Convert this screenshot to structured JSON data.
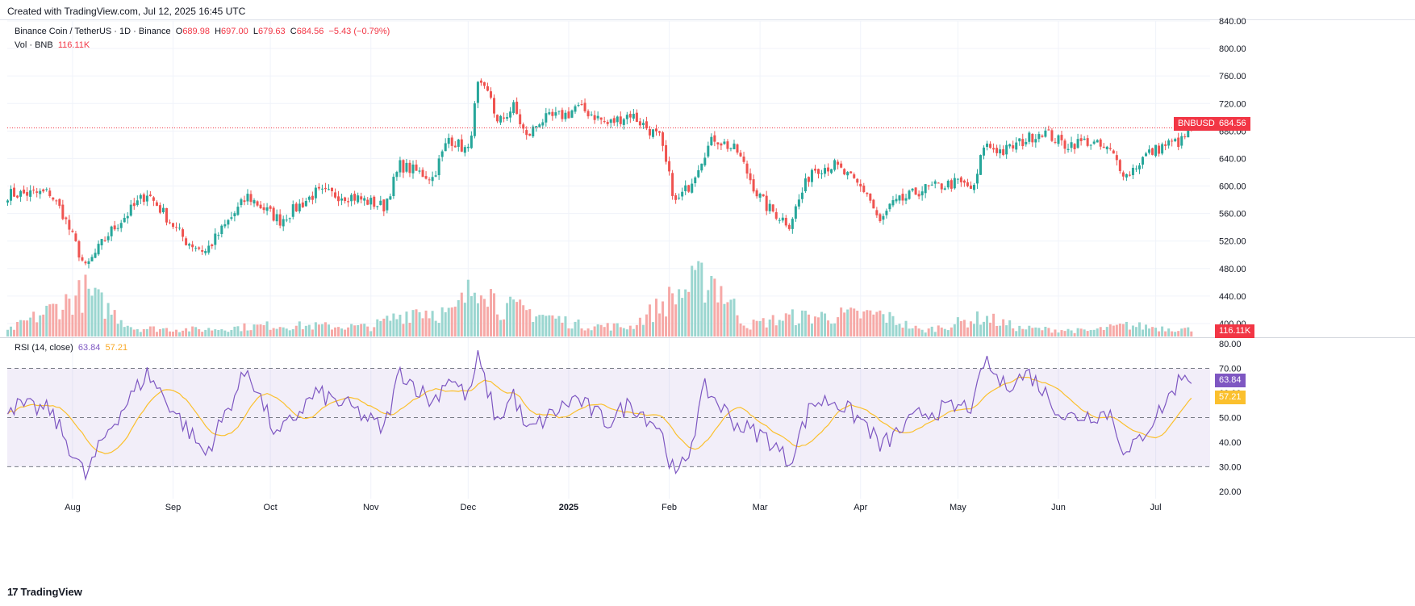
{
  "header": {
    "created": "Created with TradingView.com, Jul 12, 2025 16:45 UTC"
  },
  "legend": {
    "symbol": "Binance Coin / TetherUS · 1D · Binance",
    "o_label": "O",
    "o": "689.98",
    "h_label": "H",
    "h": "697.00",
    "l_label": "L",
    "l": "679.63",
    "c_label": "C",
    "c": "684.56",
    "change": "−5.43 (−0.79%)",
    "vol_label": "Vol · BNB",
    "vol": "116.11K",
    "rsi_label": "RSI (14, close)",
    "rsi": "63.84",
    "rsi_ma": "57.21"
  },
  "badges": {
    "symbol_tag": "BNBUSDT",
    "price_tag": "684.56",
    "vol_tag": "116.11K",
    "rsi_tag": "63.84",
    "rsi_ma_tag": "57.21"
  },
  "footer": {
    "brand": "TradingView",
    "brand_mark": "17"
  },
  "colors": {
    "up": "#26a69a",
    "down": "#ef5350",
    "rsi": "#7e57c2",
    "rsi_ma": "#fbc02d",
    "price_line": "#f23645"
  },
  "chart_data": {
    "type": "candlestick",
    "x_labels": [
      "Aug",
      "Sep",
      "Oct",
      "Nov",
      "Dec",
      "2025",
      "Feb",
      "Mar",
      "Apr",
      "May",
      "Jun",
      "Jul"
    ],
    "price_axis": {
      "ticks": [
        840,
        800,
        760,
        720,
        680,
        640,
        600,
        560,
        520,
        480,
        440,
        400
      ],
      "range": [
        380,
        840
      ]
    },
    "rsi_axis": {
      "ticks": [
        80,
        70,
        60,
        50,
        40,
        30,
        20
      ],
      "range": [
        17,
        82
      ],
      "bands": [
        70,
        50,
        30
      ]
    },
    "last_price": 684.56,
    "close_path_anchors": [
      [
        "2024-07-12",
        588
      ],
      [
        "2024-07-25",
        590
      ],
      [
        "2024-07-29",
        560
      ],
      [
        "2024-08-05",
        480
      ],
      [
        "2024-08-12",
        530
      ],
      [
        "2024-08-24",
        590
      ],
      [
        "2024-09-05",
        520
      ],
      [
        "2024-09-11",
        505
      ],
      [
        "2024-09-24",
        585
      ],
      [
        "2024-10-01",
        560
      ],
      [
        "2024-10-04",
        550
      ],
      [
        "2024-10-15",
        590
      ],
      [
        "2024-10-26",
        585
      ],
      [
        "2024-11-05",
        570
      ],
      [
        "2024-11-10",
        630
      ],
      [
        "2024-11-20",
        612
      ],
      [
        "2024-11-25",
        670
      ],
      [
        "2024-12-01",
        650
      ],
      [
        "2024-12-04",
        745
      ],
      [
        "2024-12-08",
        730
      ],
      [
        "2024-12-10",
        690
      ],
      [
        "2024-12-15",
        715
      ],
      [
        "2024-12-19",
        670
      ],
      [
        "2024-12-23",
        695
      ],
      [
        "2025-01-01",
        705
      ],
      [
        "2025-01-03",
        715
      ],
      [
        "2025-01-08",
        705
      ],
      [
        "2025-01-13",
        690
      ],
      [
        "2025-01-20",
        705
      ],
      [
        "2025-01-25",
        685
      ],
      [
        "2025-01-29",
        670
      ],
      [
        "2025-02-03",
        575
      ],
      [
        "2025-02-07",
        600
      ],
      [
        "2025-02-12",
        650
      ],
      [
        "2025-02-15",
        670
      ],
      [
        "2025-02-22",
        650
      ],
      [
        "2025-02-28",
        590
      ],
      [
        "2025-03-03",
        570
      ],
      [
        "2025-03-10",
        545
      ],
      [
        "2025-03-17",
        625
      ],
      [
        "2025-03-24",
        630
      ],
      [
        "2025-04-03",
        590
      ],
      [
        "2025-04-07",
        545
      ],
      [
        "2025-04-10",
        570
      ],
      [
        "2025-04-20",
        595
      ],
      [
        "2025-05-01",
        605
      ],
      [
        "2025-05-06",
        595
      ],
      [
        "2025-05-09",
        660
      ],
      [
        "2025-05-15",
        650
      ],
      [
        "2025-05-23",
        670
      ],
      [
        "2025-05-27",
        680
      ],
      [
        "2025-06-03",
        660
      ],
      [
        "2025-06-10",
        665
      ],
      [
        "2025-06-17",
        650
      ],
      [
        "2025-06-22",
        615
      ],
      [
        "2025-06-28",
        645
      ],
      [
        "2025-07-04",
        660
      ],
      [
        "2025-07-09",
        665
      ],
      [
        "2025-07-12",
        684.56
      ]
    ],
    "volume_anchors": [
      [
        "2024-07-12",
        20
      ],
      [
        "2024-08-05",
        160
      ],
      [
        "2024-08-20",
        30
      ],
      [
        "2024-09-10",
        25
      ],
      [
        "2024-10-01",
        40
      ],
      [
        "2024-11-01",
        35
      ],
      [
        "2024-11-15",
        100
      ],
      [
        "2024-11-26",
        80
      ],
      [
        "2024-12-03",
        180
      ],
      [
        "2024-12-05",
        240
      ],
      [
        "2024-12-10",
        110
      ],
      [
        "2024-12-20",
        90
      ],
      [
        "2025-01-05",
        40
      ],
      [
        "2025-01-20",
        35
      ],
      [
        "2025-02-03",
        150
      ],
      [
        "2025-02-14",
        220
      ],
      [
        "2025-02-25",
        40
      ],
      [
        "2025-03-10",
        70
      ],
      [
        "2025-04-07",
        80
      ],
      [
        "2025-04-20",
        20
      ],
      [
        "2025-05-09",
        70
      ],
      [
        "2025-05-20",
        30
      ],
      [
        "2025-06-10",
        20
      ],
      [
        "2025-06-22",
        40
      ],
      [
        "2025-07-12",
        25
      ]
    ],
    "rsi_anchors": [
      [
        "2024-07-12",
        55
      ],
      [
        "2024-07-25",
        53
      ],
      [
        "2024-08-05",
        26
      ],
      [
        "2024-08-12",
        45
      ],
      [
        "2024-08-24",
        68
      ],
      [
        "2024-09-05",
        46
      ],
      [
        "2024-09-11",
        35
      ],
      [
        "2024-09-24",
        70
      ],
      [
        "2024-10-03",
        42
      ],
      [
        "2024-10-15",
        60
      ],
      [
        "2024-10-26",
        54
      ],
      [
        "2024-11-05",
        45
      ],
      [
        "2024-11-10",
        69
      ],
      [
        "2024-11-20",
        56
      ],
      [
        "2024-11-25",
        67
      ],
      [
        "2024-12-01",
        58
      ],
      [
        "2024-12-04",
        74
      ],
      [
        "2024-12-10",
        48
      ],
      [
        "2024-12-15",
        60
      ],
      [
        "2024-12-19",
        44
      ],
      [
        "2025-01-03",
        58
      ],
      [
        "2025-01-13",
        48
      ],
      [
        "2025-01-20",
        56
      ],
      [
        "2025-01-29",
        46
      ],
      [
        "2025-02-03",
        25
      ],
      [
        "2025-02-07",
        36
      ],
      [
        "2025-02-12",
        62
      ],
      [
        "2025-02-22",
        47
      ],
      [
        "2025-03-03",
        42
      ],
      [
        "2025-03-10",
        32
      ],
      [
        "2025-03-17",
        56
      ],
      [
        "2025-03-24",
        57
      ],
      [
        "2025-04-03",
        47
      ],
      [
        "2025-04-07",
        38
      ],
      [
        "2025-04-20",
        52
      ],
      [
        "2025-05-06",
        55
      ],
      [
        "2025-05-09",
        73
      ],
      [
        "2025-05-15",
        63
      ],
      [
        "2025-05-23",
        68
      ],
      [
        "2025-06-03",
        50
      ],
      [
        "2025-06-17",
        52
      ],
      [
        "2025-06-22",
        34
      ],
      [
        "2025-07-04",
        56
      ],
      [
        "2025-07-10",
        69
      ],
      [
        "2025-07-12",
        63.84
      ]
    ]
  }
}
